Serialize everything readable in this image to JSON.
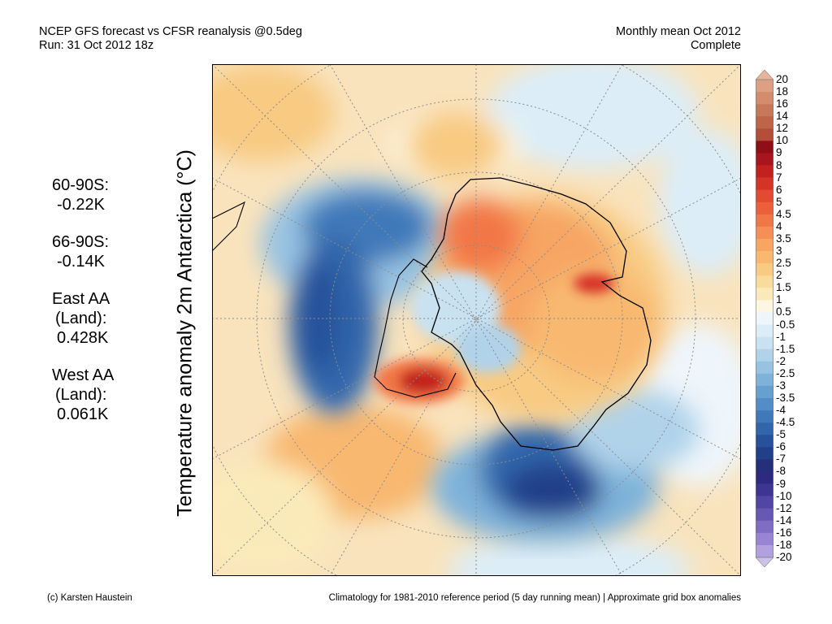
{
  "header": {
    "left_line1": "NCEP GFS forecast vs CFSR reanalysis @0.5deg",
    "left_line2": "Run: 31 Oct 2012 18z",
    "right_line1": "Monthly mean Oct 2012",
    "right_line2": "Complete"
  },
  "y_axis_label": "Temperature anomaly 2m Antarctica (°C)",
  "stats": [
    {
      "label": "60-90S:",
      "value": "-0.22K"
    },
    {
      "label": "66-90S:",
      "value": "-0.14K"
    },
    {
      "label": "East AA",
      "label2": "(Land):",
      "value": "0.428K"
    },
    {
      "label": "West AA",
      "label2": "(Land):",
      "value": "0.061K"
    }
  ],
  "legend": {
    "labels": [
      "20",
      "18",
      "16",
      "14",
      "12",
      "10",
      "9",
      "8",
      "7",
      "6",
      "5",
      "4.5",
      "4",
      "3.5",
      "3",
      "2.5",
      "2",
      "1.5",
      "1",
      "0.5",
      "-0.5",
      "-1",
      "-1.5",
      "-2",
      "-2.5",
      "-3",
      "-3.5",
      "-4",
      "-4.5",
      "-5",
      "-6",
      "-7",
      "-8",
      "-9",
      "-10",
      "-12",
      "-14",
      "-16",
      "-18",
      "-20"
    ],
    "colors": [
      "#e8b49a",
      "#dea083",
      "#d38c6e",
      "#c8785a",
      "#bd6449",
      "#b24e39",
      "#8e0f16",
      "#a8151c",
      "#c2211f",
      "#d63327",
      "#e34a32",
      "#ec5f3a",
      "#f27747",
      "#f58f57",
      "#f7a563",
      "#f8b86f",
      "#f8ca82",
      "#f9db9c",
      "#fbeab9",
      "#fdf6e0",
      "#eef5fb",
      "#dcedf8",
      "#c8e2f2",
      "#b0d3ea",
      "#97c3e2",
      "#7eb2d9",
      "#66a0cf",
      "#528dc5",
      "#4079b9",
      "#3166ab",
      "#27529b",
      "#22408a",
      "#25307a",
      "#2d2a80",
      "#3d3591",
      "#5146a3",
      "#6758b4",
      "#7e6dc3",
      "#9784d2",
      "#b2a1e0",
      "#cdc1ec"
    ]
  },
  "footer": {
    "left": "(c) Karsten Haustein",
    "right": "Climatology for 1981-2010 reference period (5 day running mean) | Approximate grid box anomalies"
  }
}
